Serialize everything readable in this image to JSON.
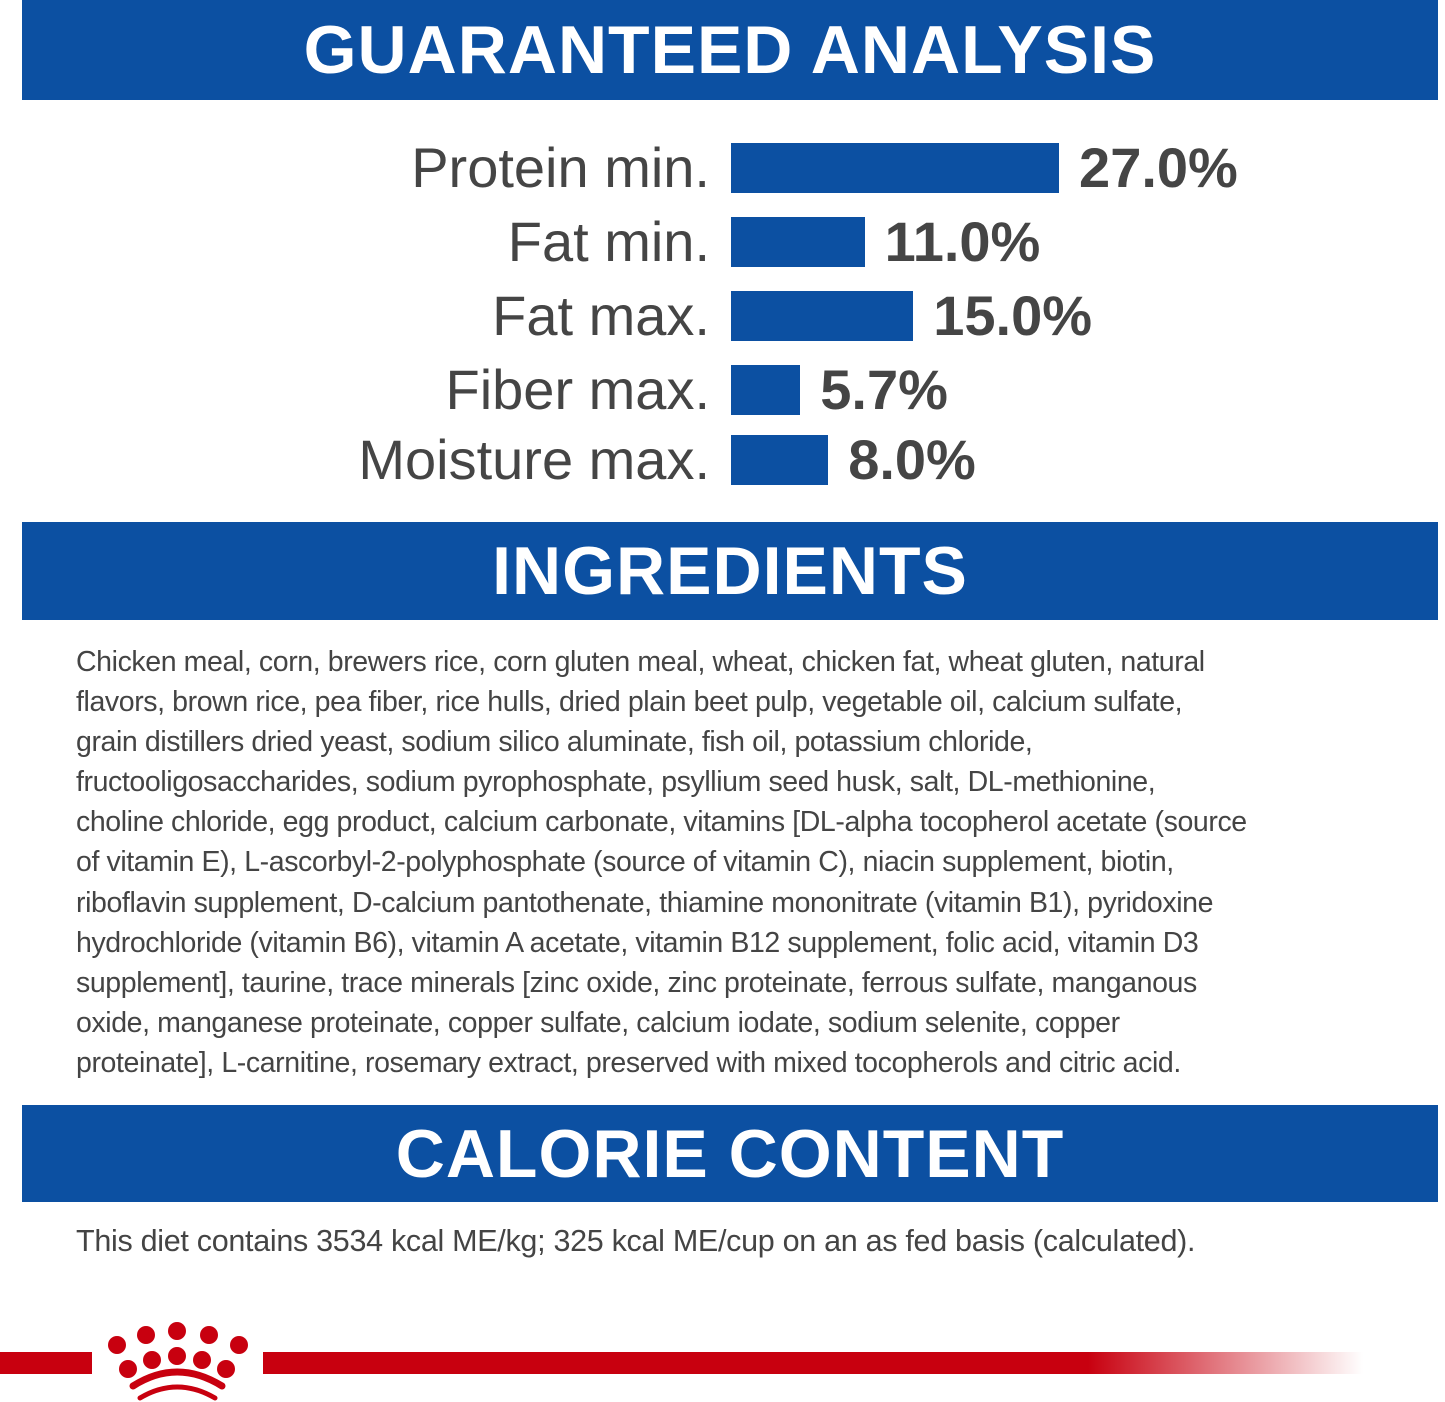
{
  "sections": {
    "analysis": "GUARANTEED ANALYSIS",
    "ingredients": "INGREDIENTS",
    "calorie": "CALORIE CONTENT"
  },
  "analysis": [
    {
      "label": "Protein min.",
      "value": 27.0,
      "text": "27.0%"
    },
    {
      "label": "Fat min.",
      "value": 11.0,
      "text": "11.0%"
    },
    {
      "label": "Fat max.",
      "value": 15.0,
      "text": "15.0%"
    },
    {
      "label": "Fiber max.",
      "value": 5.7,
      "text": "5.7%"
    },
    {
      "label": "Moisture max.",
      "value": 8.0,
      "text": "8.0%"
    }
  ],
  "ingredients_lines": [
    "Chicken meal, corn, brewers rice, corn gluten meal, wheat, chicken fat, wheat gluten, natural",
    "flavors, brown rice, pea fiber, rice hulls, dried plain beet pulp, vegetable oil, calcium sulfate,",
    "grain distillers dried yeast, sodium silico aluminate, fish oil, potassium chloride,",
    "fructooligosaccharides, sodium pyrophosphate, psyllium seed husk, salt, DL-methionine,",
    "choline chloride, egg product, calcium carbonate, vitamins [DL-alpha tocopherol acetate (source",
    "of vitamin E), L-ascorbyl-2-polyphosphate (source of vitamin C), niacin supplement, biotin,",
    "riboflavin supplement, D-calcium pantothenate, thiamine mononitrate (vitamin B1), pyridoxine",
    "hydrochloride (vitamin B6), vitamin A acetate, vitamin B12 supplement, folic acid, vitamin D3",
    "supplement], taurine, trace minerals [zinc oxide, zinc proteinate, ferrous sulfate, manganous",
    "oxide, manganese proteinate, copper sulfate, calcium iodate, sodium selenite, copper",
    "proteinate], L-carnitine, rosemary extract, preserved with mixed tocopherols and citric acid."
  ],
  "calorie_text": "This diet contains 3534 kcal ME/kg; 325 kcal ME/cup on an as fed basis (calculated).",
  "colors": {
    "brand_blue": "#0c50a2",
    "brand_red": "#c8000f",
    "text": "#444444"
  },
  "logo": {
    "icon": "royal-canin-crown-icon"
  }
}
